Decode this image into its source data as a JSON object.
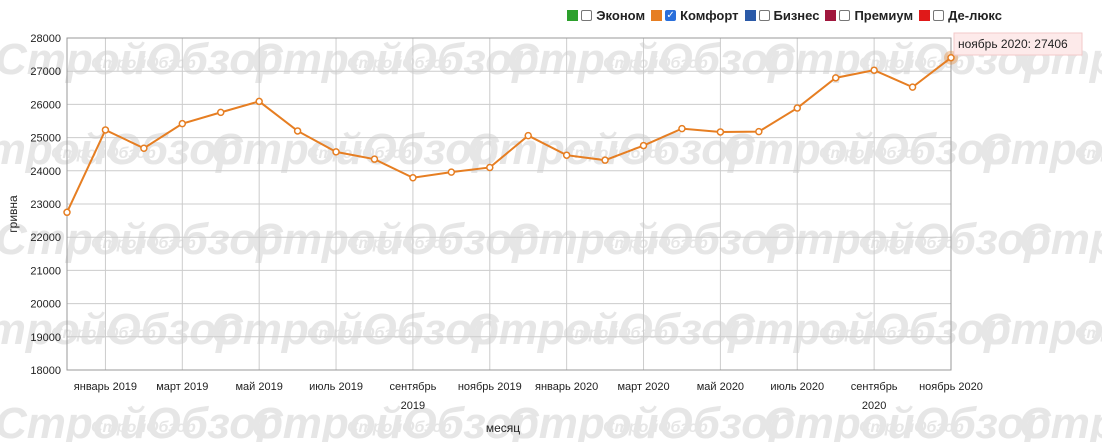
{
  "legend": [
    {
      "label": "Эконом",
      "color": "#2ca02c",
      "checked": false
    },
    {
      "label": "Комфорт",
      "color": "#e67e22",
      "checked": true
    },
    {
      "label": "Бизнес",
      "color": "#2b5aa8",
      "checked": false
    },
    {
      "label": "Премиум",
      "color": "#a0173d",
      "checked": false
    },
    {
      "label": "Де-люкс",
      "color": "#e01919",
      "checked": false
    }
  ],
  "watermark": "СтройОбзор",
  "tooltip": {
    "text": "ноябрь 2020: 27406"
  },
  "chart_data": {
    "type": "line",
    "xlabel": "месяц",
    "ylabel": "гривна",
    "ylim": [
      18000,
      28000
    ],
    "yticks": [
      18000,
      19000,
      20000,
      21000,
      22000,
      23000,
      24000,
      25000,
      26000,
      27000,
      28000
    ],
    "grid": true,
    "legend_position": "top-right",
    "x_tick_labels": [
      {
        "index": 1,
        "label": "январь 2019"
      },
      {
        "index": 3,
        "label": "март 2019"
      },
      {
        "index": 5,
        "label": "май 2019"
      },
      {
        "index": 7,
        "label": "июль 2019"
      },
      {
        "index": 9,
        "label": "сентябрь",
        "label2": "2019"
      },
      {
        "index": 11,
        "label": "ноябрь 2019"
      },
      {
        "index": 13,
        "label": "январь 2020"
      },
      {
        "index": 15,
        "label": "март 2020"
      },
      {
        "index": 17,
        "label": "май 2020"
      },
      {
        "index": 19,
        "label": "июль 2020"
      },
      {
        "index": 21,
        "label": "сентябрь",
        "label2": "2020"
      },
      {
        "index": 23,
        "label": "ноябрь 2020"
      }
    ],
    "series": [
      {
        "name": "Комфорт",
        "color": "#e67e22",
        "x": [
          "2018-12",
          "2019-01",
          "2019-02",
          "2019-03",
          "2019-04",
          "2019-05",
          "2019-06",
          "2019-07",
          "2019-08",
          "2019-09",
          "2019-10",
          "2019-11",
          "2019-12",
          "2020-01",
          "2020-02",
          "2020-03",
          "2020-04",
          "2020-05",
          "2020-06",
          "2020-07",
          "2020-08",
          "2020-09",
          "2020-10",
          "2020-11"
        ],
        "values": [
          22750,
          25230,
          24680,
          25420,
          25760,
          26090,
          25200,
          24570,
          24350,
          23790,
          23960,
          24100,
          25060,
          24470,
          24320,
          24760,
          25270,
          25170,
          25180,
          25890,
          26800,
          27030,
          26520,
          27406
        ]
      }
    ]
  }
}
